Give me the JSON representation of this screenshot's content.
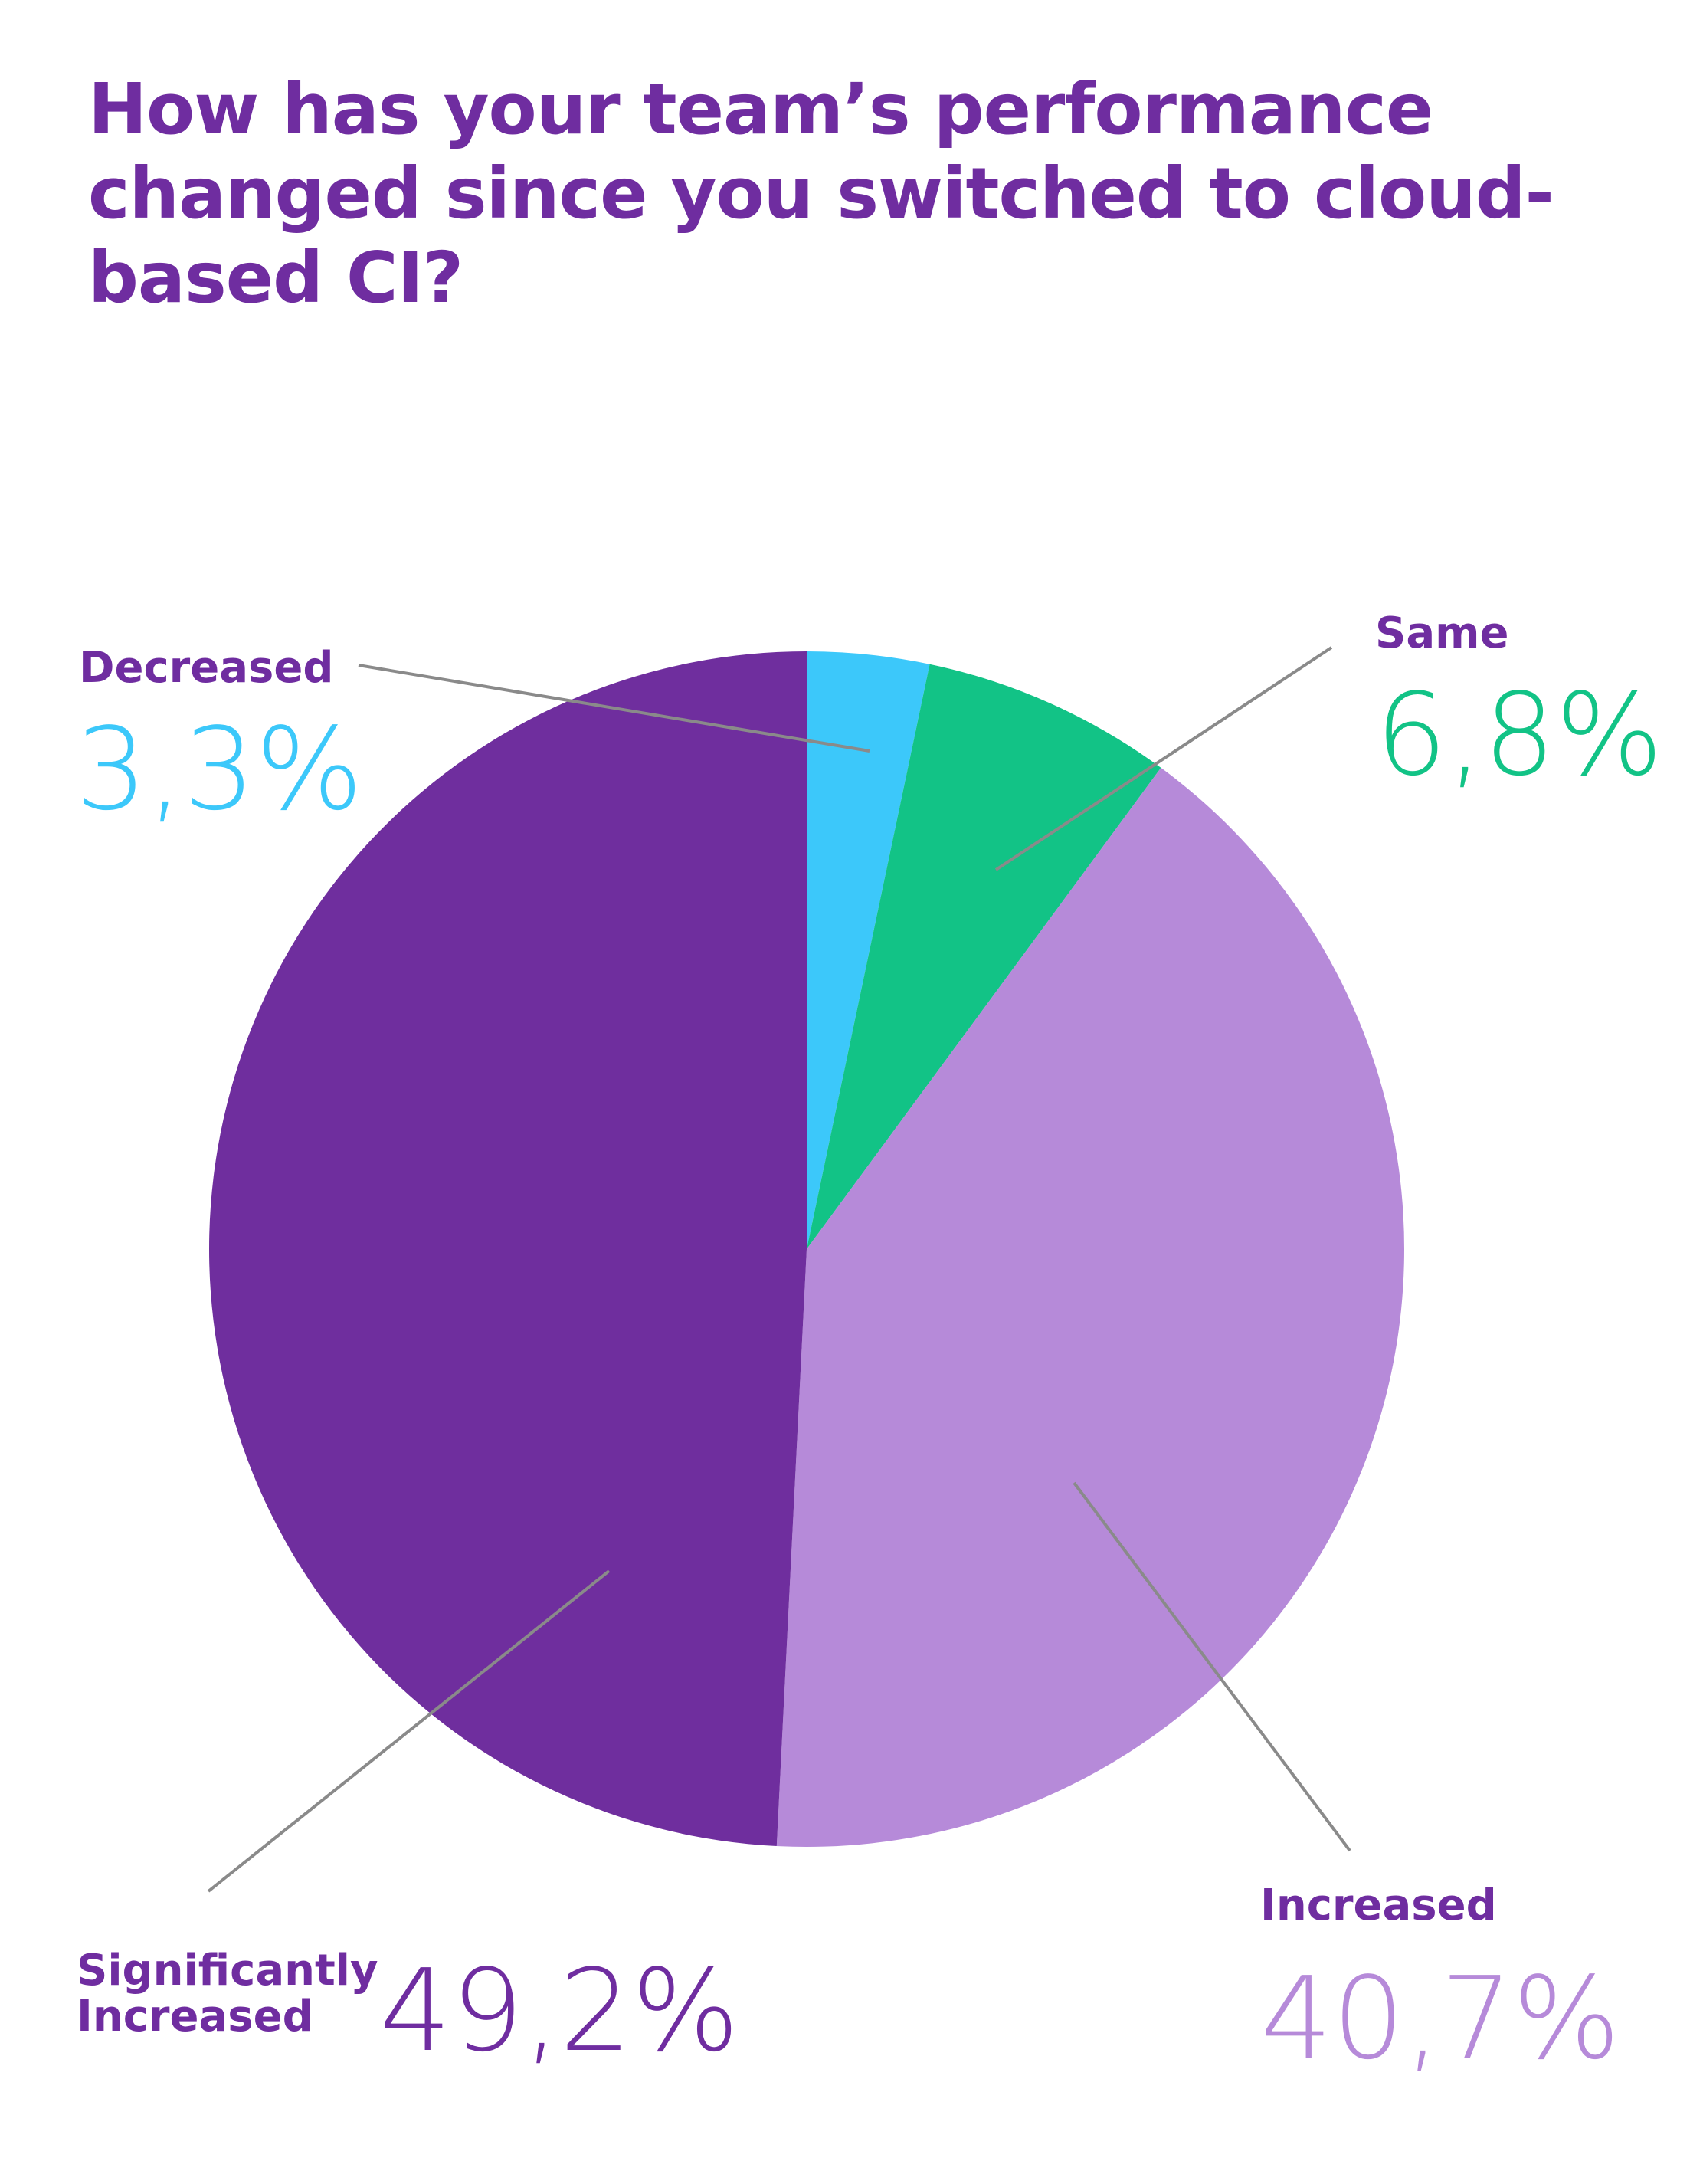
{
  "chart_data": {
    "type": "pie",
    "title": "How has your team’s performance changed since you switched to cloud-based CI?",
    "slices": [
      {
        "label": "Decreased",
        "value": 3.3,
        "display": "3,3%",
        "color": "#3cc8fa"
      },
      {
        "label": "Same",
        "value": 6.8,
        "display": "6,8%",
        "color": "#12c386"
      },
      {
        "label": "Increased",
        "value": 40.7,
        "display": "40,7%",
        "color": "#b68ad9"
      },
      {
        "label": [
          "Significantly",
          "Increased"
        ],
        "value": 49.2,
        "display": "49,2%",
        "color": "#6f2e9e"
      }
    ],
    "label_color": "#6f2da0",
    "leader_line_color": "#8a8a8a",
    "start_angle": "12 o'clock",
    "direction": "clockwise"
  }
}
